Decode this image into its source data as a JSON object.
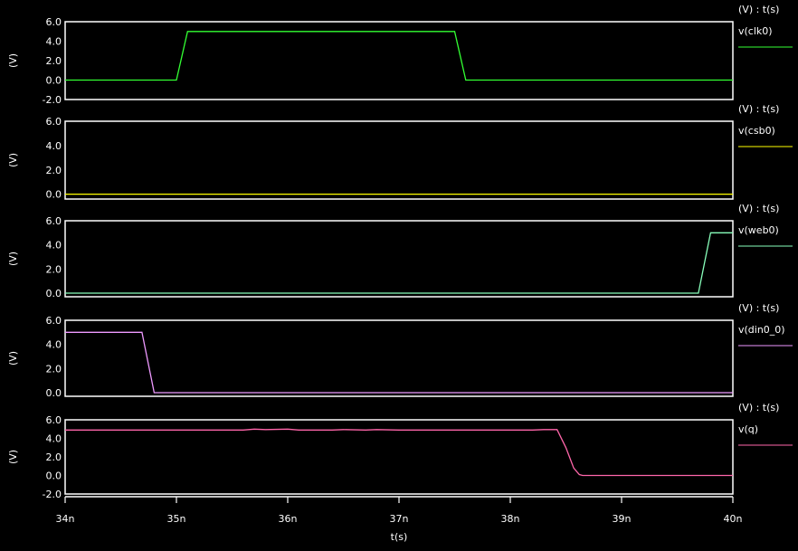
{
  "chart_data": {
    "type": "line",
    "xlabel": "t(s)",
    "x_unit": "ns",
    "xlim": [
      34,
      40
    ],
    "x_ticks": [
      "34n",
      "35n",
      "36n",
      "37n",
      "38n",
      "39n",
      "40n"
    ],
    "grid": false,
    "legend_placement": "right",
    "panels": [
      {
        "name": "v(clk0)",
        "header": "(V) : t(s)",
        "ylabel": "(V)",
        "ylim": [
          -2,
          6
        ],
        "y_ticks": [
          "6.0",
          "4.0",
          "2.0",
          "0.0",
          "-2.0"
        ],
        "y_tick_values": [
          6,
          4,
          2,
          0,
          -2
        ],
        "color": "#33ff33",
        "points": [
          [
            34,
            0
          ],
          [
            35.0,
            0
          ],
          [
            35.1,
            5
          ],
          [
            37.5,
            5
          ],
          [
            37.6,
            0
          ],
          [
            40,
            0
          ]
        ]
      },
      {
        "name": "v(csb0)",
        "header": "(V) : t(s)",
        "ylabel": "(V)",
        "ylim": [
          -0.4,
          6
        ],
        "y_ticks": [
          "6.0",
          "4.0",
          "2.0",
          "0.0"
        ],
        "y_tick_values": [
          6,
          4,
          2,
          0
        ],
        "color": "#ffff00",
        "points": [
          [
            34,
            0
          ],
          [
            40,
            0
          ]
        ]
      },
      {
        "name": "v(web0)",
        "header": "(V) : t(s)",
        "ylabel": "(V)",
        "ylim": [
          -0.3,
          6
        ],
        "y_ticks": [
          "6.0",
          "4.0",
          "2.0",
          "0.0"
        ],
        "y_tick_values": [
          6,
          4,
          2,
          0
        ],
        "color": "#88ffbb",
        "points": [
          [
            34,
            0
          ],
          [
            39.69,
            0
          ],
          [
            39.8,
            5
          ],
          [
            40,
            5
          ]
        ]
      },
      {
        "name": "v(din0_0)",
        "header": "(V) : t(s)",
        "ylabel": "(V)",
        "ylim": [
          -0.3,
          6
        ],
        "y_ticks": [
          "6.0",
          "4.0",
          "2.0",
          "0.0"
        ],
        "y_tick_values": [
          6,
          4,
          2,
          0
        ],
        "color": "#ee99ff",
        "points": [
          [
            34,
            5
          ],
          [
            34.69,
            5
          ],
          [
            34.8,
            0
          ],
          [
            40,
            0
          ]
        ]
      },
      {
        "name": "v(q)",
        "header": "(V) : t(s)",
        "ylabel": "(V)",
        "ylim": [
          -2,
          6
        ],
        "y_ticks": [
          "6.0",
          "4.0",
          "2.0",
          "0.0",
          "-2.0"
        ],
        "y_tick_values": [
          6,
          4,
          2,
          0,
          -2
        ],
        "color": "#ff66aa",
        "points": [
          [
            34,
            4.9
          ],
          [
            35.6,
            4.9
          ],
          [
            35.7,
            5.0
          ],
          [
            35.8,
            4.95
          ],
          [
            36.0,
            5.0
          ],
          [
            36.1,
            4.9
          ],
          [
            36.4,
            4.9
          ],
          [
            36.5,
            4.95
          ],
          [
            36.7,
            4.9
          ],
          [
            36.8,
            4.95
          ],
          [
            37.0,
            4.9
          ],
          [
            38.2,
            4.9
          ],
          [
            38.3,
            4.95
          ],
          [
            38.42,
            4.95
          ],
          [
            38.5,
            3.0
          ],
          [
            38.57,
            0.8
          ],
          [
            38.62,
            0.1
          ],
          [
            38.65,
            0
          ],
          [
            40,
            0
          ]
        ]
      }
    ]
  }
}
